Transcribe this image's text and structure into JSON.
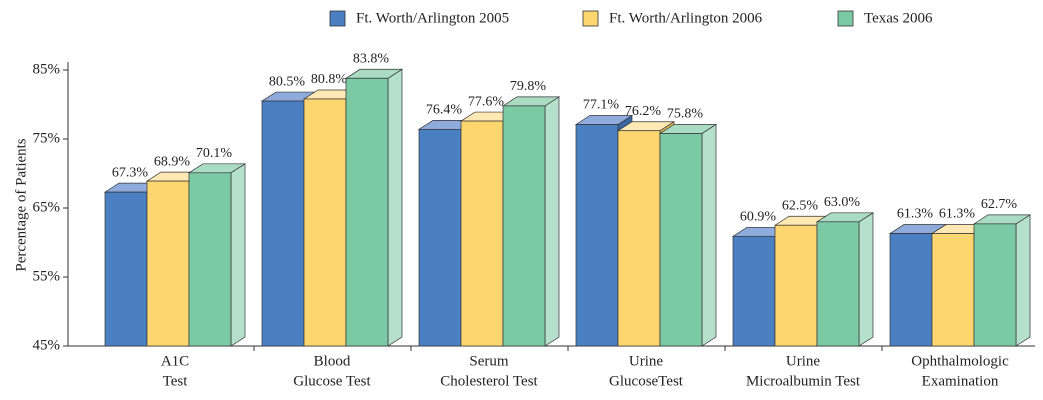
{
  "chart_data": {
    "type": "bar3d",
    "ylabel": "Percentage of Patients",
    "categories": [
      [
        "A1C",
        "Test"
      ],
      [
        "Blood",
        "Glucose Test"
      ],
      [
        "Serum",
        "Cholesterol Test"
      ],
      [
        "Urine",
        "GlucoseTest"
      ],
      [
        "Urine",
        "Microalbumin Test"
      ],
      [
        "Ophthalmologic",
        "Examination"
      ]
    ],
    "series": [
      {
        "name": "Ft. Worth/Arlington 2005",
        "color": "#4a7fc2",
        "top_color": "#8fabdc",
        "side_color": "#3a67a3",
        "values": [
          67.3,
          80.5,
          76.4,
          77.1,
          60.9,
          61.3
        ],
        "value_labels": [
          "67.3%",
          "80.5%",
          "76.4%",
          "77.1%",
          "60.9%",
          "61.3%"
        ]
      },
      {
        "name": "Ft. Worth/Arlington 2006",
        "color": "#fdd66f",
        "top_color": "#fee8b3",
        "side_color": "#e8c05a",
        "values": [
          68.9,
          80.8,
          77.6,
          76.2,
          62.5,
          61.3
        ],
        "value_labels": [
          "68.9%",
          "80.8%",
          "77.6%",
          "76.2%",
          "62.5%",
          "61.3%"
        ]
      },
      {
        "name": "Texas 2006",
        "color": "#7cc9a5",
        "top_color": "#a9dcc3",
        "side_color": "#b5e0cb",
        "values": [
          70.1,
          83.8,
          79.8,
          75.8,
          63.0,
          62.7
        ],
        "value_labels": [
          "70.1%",
          "83.8%",
          "79.8%",
          "75.8%",
          "63.0%",
          "62.7%"
        ]
      }
    ],
    "ylim": [
      45,
      85
    ],
    "yticks": [
      {
        "value": 45,
        "label": "45%"
      },
      {
        "value": 55,
        "label": "55%"
      },
      {
        "value": 65,
        "label": "65%"
      },
      {
        "value": 75,
        "label": "75%"
      },
      {
        "value": 85,
        "label": "85%"
      }
    ],
    "legend": "top-right"
  }
}
